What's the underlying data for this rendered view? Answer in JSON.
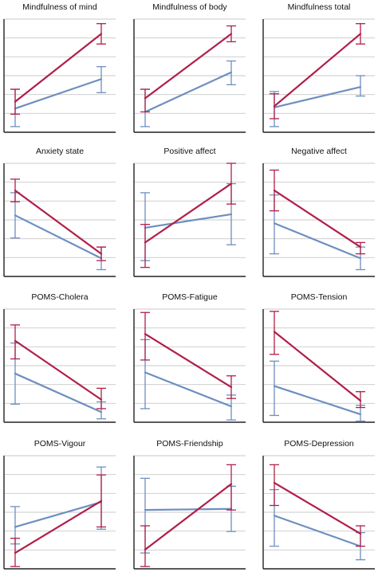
{
  "figure": {
    "colors": {
      "red": "#b01f48",
      "blue": "#6d8fbf",
      "grid": "#c9c9c9",
      "axis": "#222222"
    }
  },
  "chart_data": [
    {
      "type": "line",
      "title": "Mindfulness of mind",
      "grid": true,
      "series": [
        {
          "color": "#b01f48",
          "points": [
            {
              "y": 0.27,
              "err_low": 0.16,
              "err_high": 0.38
            },
            {
              "y": 0.87,
              "err_low": 0.78,
              "err_high": 0.96
            }
          ]
        },
        {
          "color": "#6d8fbf",
          "points": [
            {
              "y": 0.21,
              "err_low": 0.05,
              "err_high": 0.38
            },
            {
              "y": 0.47,
              "err_low": 0.35,
              "err_high": 0.58
            }
          ]
        }
      ]
    },
    {
      "type": "line",
      "title": "Mindfulness of body",
      "grid": true,
      "series": [
        {
          "color": "#b01f48",
          "points": [
            {
              "y": 0.3,
              "err_low": 0.18,
              "err_high": 0.38
            },
            {
              "y": 0.87,
              "err_low": 0.8,
              "err_high": 0.94
            }
          ]
        },
        {
          "color": "#6d8fbf",
          "points": [
            {
              "y": 0.18,
              "err_low": 0.05,
              "err_high": 0.38
            },
            {
              "y": 0.53,
              "err_low": 0.42,
              "err_high": 0.63
            }
          ]
        }
      ]
    },
    {
      "type": "line",
      "title": "Mindfulness total",
      "grid": true,
      "series": [
        {
          "color": "#b01f48",
          "points": [
            {
              "y": 0.23,
              "err_low": 0.12,
              "err_high": 0.34
            },
            {
              "y": 0.87,
              "err_low": 0.78,
              "err_high": 0.96
            }
          ]
        },
        {
          "color": "#6d8fbf",
          "points": [
            {
              "y": 0.22,
              "err_low": 0.05,
              "err_high": 0.36
            },
            {
              "y": 0.4,
              "err_low": 0.32,
              "err_high": 0.5
            }
          ]
        }
      ]
    },
    {
      "type": "line",
      "title": "Anxiety state",
      "grid": true,
      "series": [
        {
          "color": "#b01f48",
          "points": [
            {
              "y": 0.76,
              "err_low": 0.66,
              "err_high": 0.86
            },
            {
              "y": 0.2,
              "err_low": 0.14,
              "err_high": 0.26
            }
          ]
        },
        {
          "color": "#6d8fbf",
          "points": [
            {
              "y": 0.54,
              "err_low": 0.34,
              "err_high": 0.74
            },
            {
              "y": 0.16,
              "err_low": 0.06,
              "err_high": 0.26
            }
          ]
        }
      ]
    },
    {
      "type": "line",
      "title": "Positive affect",
      "grid": true,
      "series": [
        {
          "color": "#b01f48",
          "points": [
            {
              "y": 0.3,
              "err_low": 0.08,
              "err_high": 0.46
            },
            {
              "y": 0.82,
              "err_low": 0.64,
              "err_high": 1.0
            }
          ]
        },
        {
          "color": "#6d8fbf",
          "points": [
            {
              "y": 0.43,
              "err_low": 0.14,
              "err_high": 0.74
            },
            {
              "y": 0.55,
              "err_low": 0.28,
              "err_high": 0.82
            }
          ]
        }
      ]
    },
    {
      "type": "line",
      "title": "Negative affect",
      "grid": true,
      "series": [
        {
          "color": "#b01f48",
          "points": [
            {
              "y": 0.76,
              "err_low": 0.58,
              "err_high": 0.94
            },
            {
              "y": 0.26,
              "err_low": 0.2,
              "err_high": 0.3
            }
          ]
        },
        {
          "color": "#6d8fbf",
          "points": [
            {
              "y": 0.47,
              "err_low": 0.2,
              "err_high": 0.72
            },
            {
              "y": 0.16,
              "err_low": 0.06,
              "err_high": 0.26
            }
          ]
        }
      ]
    },
    {
      "type": "line",
      "title": "POMS-Cholera",
      "grid": true,
      "series": [
        {
          "color": "#b01f48",
          "points": [
            {
              "y": 0.72,
              "err_low": 0.56,
              "err_high": 0.86
            },
            {
              "y": 0.2,
              "err_low": 0.12,
              "err_high": 0.3
            }
          ]
        },
        {
          "color": "#6d8fbf",
          "points": [
            {
              "y": 0.43,
              "err_low": 0.16,
              "err_high": 0.7
            },
            {
              "y": 0.09,
              "err_low": 0.03,
              "err_high": 0.18
            }
          ]
        }
      ]
    },
    {
      "type": "line",
      "title": "POMS-Fatigue",
      "grid": true,
      "series": [
        {
          "color": "#b01f48",
          "points": [
            {
              "y": 0.78,
              "err_low": 0.55,
              "err_high": 0.97
            },
            {
              "y": 0.31,
              "err_low": 0.21,
              "err_high": 0.41
            }
          ]
        },
        {
          "color": "#6d8fbf",
          "points": [
            {
              "y": 0.44,
              "err_low": 0.12,
              "err_high": 0.73
            },
            {
              "y": 0.14,
              "err_low": 0.02,
              "err_high": 0.24
            }
          ]
        }
      ]
    },
    {
      "type": "line",
      "title": "POMS-Tension",
      "grid": true,
      "series": [
        {
          "color": "#b01f48",
          "points": [
            {
              "y": 0.8,
              "err_low": 0.6,
              "err_high": 0.98
            },
            {
              "y": 0.19,
              "err_low": 0.13,
              "err_high": 0.27
            }
          ]
        },
        {
          "color": "#6d8fbf",
          "points": [
            {
              "y": 0.32,
              "err_low": 0.06,
              "err_high": 0.54
            },
            {
              "y": 0.07,
              "err_low": 0.01,
              "err_high": 0.15
            }
          ]
        }
      ]
    },
    {
      "type": "line",
      "title": "POMS-Vigour",
      "grid": true,
      "series": [
        {
          "color": "#b01f48",
          "points": [
            {
              "y": 0.14,
              "err_low": 0.02,
              "err_high": 0.27
            },
            {
              "y": 0.6,
              "err_low": 0.37,
              "err_high": 0.83
            }
          ]
        },
        {
          "color": "#6d8fbf",
          "points": [
            {
              "y": 0.37,
              "err_low": 0.22,
              "err_high": 0.55
            },
            {
              "y": 0.59,
              "err_low": 0.35,
              "err_high": 0.9
            }
          ]
        }
      ]
    },
    {
      "type": "line",
      "title": "POMS-Friendship",
      "grid": true,
      "series": [
        {
          "color": "#b01f48",
          "points": [
            {
              "y": 0.17,
              "err_low": 0.02,
              "err_high": 0.38
            },
            {
              "y": 0.75,
              "err_low": 0.52,
              "err_high": 0.92
            }
          ]
        },
        {
          "color": "#6d8fbf",
          "points": [
            {
              "y": 0.52,
              "err_low": 0.14,
              "err_high": 0.8
            },
            {
              "y": 0.53,
              "err_low": 0.33,
              "err_high": 0.73
            }
          ]
        }
      ]
    },
    {
      "type": "line",
      "title": "POMS-Depression",
      "grid": true,
      "series": [
        {
          "color": "#b01f48",
          "points": [
            {
              "y": 0.76,
              "err_low": 0.56,
              "err_high": 0.92
            },
            {
              "y": 0.31,
              "err_low": 0.2,
              "err_high": 0.38
            }
          ]
        },
        {
          "color": "#6d8fbf",
          "points": [
            {
              "y": 0.47,
              "err_low": 0.2,
              "err_high": 0.7
            },
            {
              "y": 0.2,
              "err_low": 0.08,
              "err_high": 0.32
            }
          ]
        }
      ]
    }
  ]
}
